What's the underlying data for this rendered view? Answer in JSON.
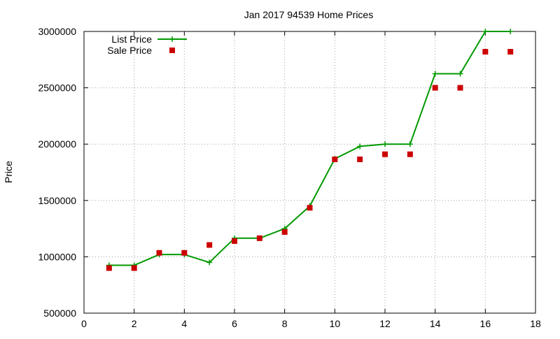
{
  "chart_data": {
    "type": "line",
    "title": "Jan 2017 94539 Home Prices",
    "xlabel": "",
    "ylabel": "Price",
    "xlim": [
      0,
      18
    ],
    "ylim": [
      500000,
      3000000
    ],
    "x_ticks": [
      0,
      2,
      4,
      6,
      8,
      10,
      12,
      14,
      16,
      18
    ],
    "y_ticks": [
      500000,
      1000000,
      1500000,
      2000000,
      2500000,
      3000000
    ],
    "x_tick_labels": [
      "0",
      "2",
      "4",
      "6",
      "8",
      "10",
      "12",
      "14",
      "16",
      "18"
    ],
    "y_tick_labels": [
      "500000",
      "1000000",
      "1500000",
      "2000000",
      "2500000",
      "3000000"
    ],
    "grid": true,
    "legend_position": "top-left",
    "series": [
      {
        "name": "List Price",
        "style": "line+cross",
        "color": "#009900",
        "x": [
          1,
          2,
          3,
          4,
          5,
          6,
          7,
          8,
          9,
          10,
          11,
          12,
          13,
          14,
          15,
          16,
          17
        ],
        "values": [
          925000,
          925000,
          1020000,
          1020000,
          950000,
          1165000,
          1165000,
          1250000,
          1450000,
          1870000,
          1980000,
          2000000,
          2000000,
          2625000,
          2625000,
          3000000,
          3000000
        ]
      },
      {
        "name": "Sale Price",
        "style": "square-points",
        "color": "#cc0000",
        "x": [
          1,
          2,
          3,
          4,
          5,
          6,
          7,
          8,
          9,
          10,
          11,
          12,
          13,
          14,
          15,
          16,
          17
        ],
        "values": [
          900000,
          900000,
          1035000,
          1035000,
          1105000,
          1140000,
          1165000,
          1220000,
          1435000,
          1865000,
          1865000,
          1910000,
          1910000,
          2500000,
          2500000,
          2820000,
          2820000
        ]
      }
    ]
  }
}
